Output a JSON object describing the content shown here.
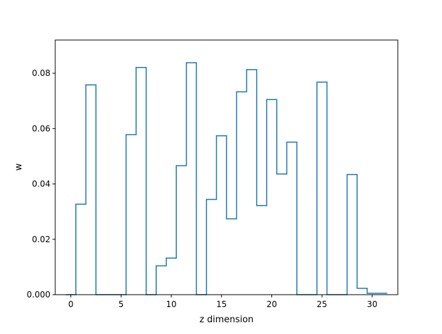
{
  "chart_data": {
    "type": "step",
    "xlabel": "z dimension",
    "ylabel": "w",
    "xlim": [
      -1.55,
      32.55
    ],
    "ylim": [
      0,
      0.092
    ],
    "x_ticks": [
      0,
      5,
      10,
      15,
      20,
      25,
      30
    ],
    "x_tick_labels": [
      "0",
      "5",
      "10",
      "15",
      "20",
      "25",
      "30"
    ],
    "y_ticks": [
      0,
      0.02,
      0.04,
      0.06,
      0.08
    ],
    "y_tick_labels": [
      "0.000",
      "0.02",
      "0.04",
      "0.06",
      "0.08"
    ],
    "line_color": "#1f77b4",
    "grid": false,
    "x": [
      0,
      1,
      2,
      3,
      4,
      5,
      6,
      7,
      8,
      9,
      10,
      11,
      12,
      13,
      14,
      15,
      16,
      17,
      18,
      19,
      20,
      21,
      22,
      23,
      24,
      25,
      26,
      27,
      28,
      29,
      30,
      31
    ],
    "values": [
      0.0,
      0.0327,
      0.0758,
      0.0,
      0.0,
      0.0,
      0.0578,
      0.0821,
      0.0,
      0.0104,
      0.0132,
      0.0466,
      0.0838,
      0.0,
      0.0344,
      0.0574,
      0.0274,
      0.0733,
      0.0813,
      0.0322,
      0.0705,
      0.0436,
      0.0551,
      0.0,
      0.0,
      0.0768,
      0.0,
      0.0,
      0.0434,
      0.0023,
      0.0005,
      0.0005
    ]
  }
}
